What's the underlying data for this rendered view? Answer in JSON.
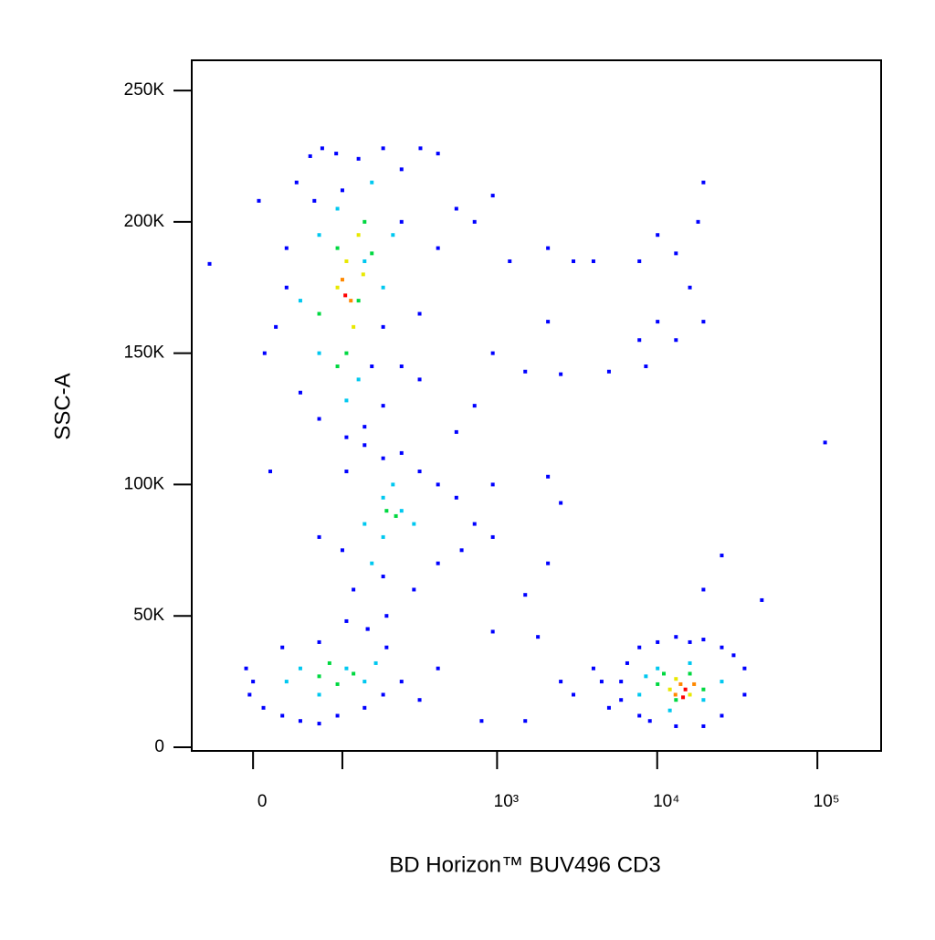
{
  "chart_data": {
    "type": "scatter",
    "xlabel": "BD Horizon™ BUV496 CD3",
    "ylabel": "SSC-A",
    "xscale": "biexponential",
    "xlim": [
      -60,
      250000
    ],
    "ylim": [
      -1400,
      261500
    ],
    "xticks": [
      {
        "value": 0,
        "label": "0"
      },
      {
        "value": 100,
        "label": null
      },
      {
        "value": 1000,
        "label": "10³"
      },
      {
        "value": 10000,
        "label": "10⁴"
      },
      {
        "value": 100000,
        "label": "10⁵"
      }
    ],
    "yticks": [
      0,
      {
        "value": 50000,
        "label": "50K"
      },
      {
        "value": 100000,
        "label": "100K"
      },
      {
        "value": 150000,
        "label": "150K"
      },
      {
        "value": 200000,
        "label": "200K"
      },
      {
        "value": 250000,
        "label": "250K"
      }
    ],
    "series": [
      {
        "color": "#0000ff",
        "x": [
          40,
          55,
          70,
          90,
          130,
          190,
          250,
          330,
          426,
          30,
          20,
          10,
          44,
          66,
          107,
          143,
          190,
          250,
          326,
          426,
          556,
          250,
          30,
          15,
          60,
          190,
          326,
          100,
          160,
          -40,
          5,
          723,
          940,
          1200,
          2080,
          3000,
          4000,
          7740,
          10060,
          13100,
          16000,
          18000,
          19440,
          10060,
          13100,
          19440,
          7740,
          2080,
          940,
          1500,
          2500,
          5000,
          8500,
          111700,
          723,
          556,
          940,
          2080,
          2500,
          45000,
          25300,
          19440,
          2080,
          1500,
          940,
          1800,
          2500,
          3000,
          4000,
          5000,
          800,
          1500,
          66,
          107,
          143,
          190,
          250,
          326,
          426,
          556,
          723,
          940,
          600,
          426,
          190,
          120,
          100,
          300,
          200,
          150,
          -6,
          -3,
          9,
          26,
          44,
          66,
          92,
          143,
          190,
          250,
          326,
          200,
          150,
          107,
          66,
          26,
          0,
          426,
          5950,
          7740,
          10060,
          13100,
          16000,
          19440,
          25300,
          35100,
          35100,
          25300,
          19440,
          13100,
          7740,
          5950,
          4500,
          6500,
          30000,
          9000
        ],
        "y": [
          215000,
          225000,
          228000,
          226000,
          224000,
          228000,
          220000,
          228000,
          226000,
          190000,
          160000,
          150000,
          135000,
          125000,
          118000,
          122000,
          130000,
          145000,
          165000,
          190000,
          205000,
          200000,
          175000,
          105000,
          208000,
          160000,
          140000,
          212000,
          145000,
          184000,
          208000,
          200000,
          210000,
          185000,
          190000,
          185000,
          185000,
          185000,
          195000,
          188000,
          175000,
          200000,
          215000,
          162000,
          155000,
          162000,
          155000,
          162000,
          150000,
          143000,
          142000,
          143000,
          145000,
          116000,
          130000,
          120000,
          100000,
          103000,
          93000,
          56000,
          73000,
          60000,
          70000,
          58000,
          44000,
          42000,
          25000,
          20000,
          30000,
          15000,
          10000,
          10000,
          80000,
          105000,
          115000,
          110000,
          112000,
          105000,
          100000,
          95000,
          85000,
          80000,
          75000,
          70000,
          65000,
          60000,
          75000,
          60000,
          50000,
          45000,
          30000,
          20000,
          15000,
          12000,
          10000,
          9000,
          12000,
          15000,
          20000,
          25000,
          18000,
          38000,
          45000,
          48000,
          40000,
          38000,
          25000,
          30000,
          25000,
          38000,
          40000,
          42000,
          40000,
          41000,
          38000,
          30000,
          20000,
          12000,
          8000,
          8000,
          12000,
          18000,
          25000,
          32000,
          35000,
          10000
        ]
      },
      {
        "color": "#00c8f0",
        "x": [
          44,
          66,
          66,
          92,
          130,
          143,
          190,
          160,
          107,
          220,
          143,
          190,
          250,
          190,
          220,
          300,
          160,
          30,
          66,
          107,
          143,
          44,
          170,
          7740,
          10060,
          16000,
          25300,
          19440,
          12000,
          8500
        ],
        "y": [
          170000,
          150000,
          195000,
          205000,
          140000,
          185000,
          175000,
          215000,
          132000,
          195000,
          85000,
          95000,
          90000,
          80000,
          100000,
          85000,
          70000,
          25000,
          20000,
          30000,
          25000,
          30000,
          32000,
          20000,
          30000,
          32000,
          25000,
          18000,
          14000,
          27000
        ]
      },
      {
        "color": "#00d840",
        "x": [
          66,
          92,
          107,
          143,
          130,
          160,
          92,
          200,
          230,
          66,
          92,
          120,
          80,
          10060,
          16000,
          19440,
          13100,
          11000
        ],
        "y": [
          165000,
          190000,
          150000,
          200000,
          170000,
          188000,
          145000,
          90000,
          88000,
          27000,
          24000,
          28000,
          32000,
          24000,
          28000,
          22000,
          18000,
          28000
        ]
      },
      {
        "color": "#e8e800",
        "x": [
          92,
          107,
          130,
          120,
          140,
          13100,
          16000,
          12000
        ],
        "y": [
          175000,
          185000,
          195000,
          160000,
          180000,
          26000,
          20000,
          22000
        ]
      },
      {
        "color": "#ff8800",
        "x": [
          100,
          115,
          14000,
          17000,
          13000
        ],
        "y": [
          178000,
          170000,
          24000,
          24000,
          20000
        ]
      },
      {
        "color": "#ff0000",
        "x": [
          105,
          15000,
          14500
        ],
        "y": [
          172000,
          22000,
          19000
        ]
      }
    ]
  }
}
